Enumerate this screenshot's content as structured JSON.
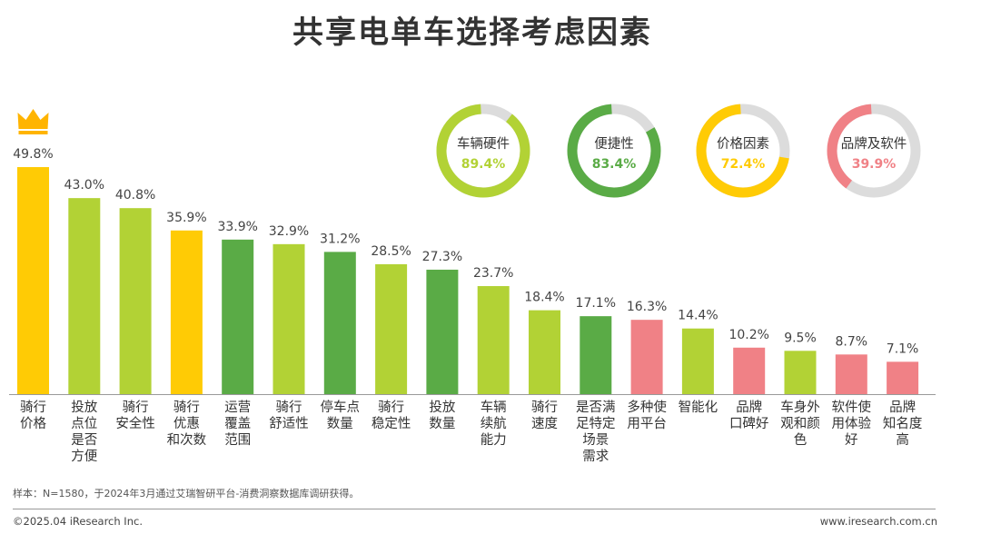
{
  "title": "共享电单车选择考虑因素",
  "chart_data": [
    {
      "type": "bar",
      "categories": [
        "骑行价格",
        "投放点位是否方便",
        "骑行安全性",
        "骑行优惠和次数",
        "运营覆盖范围",
        "骑行舒适性",
        "停车点数量",
        "骑行稳定性",
        "投放数量",
        "车辆续航能力",
        "骑行速度",
        "是否满足特定场景需求",
        "多种使用平台",
        "智能化",
        "品牌口碑好",
        "车身外观和颜色",
        "软件使用体验好",
        "品牌知名度高"
      ],
      "category_lines": [
        [
          "骑行",
          "价格"
        ],
        [
          "投放",
          "点位",
          "是否",
          "方便"
        ],
        [
          "骑行",
          "安全性"
        ],
        [
          "骑行",
          "优惠",
          "和次数"
        ],
        [
          "运营",
          "覆盖",
          "范围"
        ],
        [
          "骑行",
          "舒适性"
        ],
        [
          "停车点",
          "数量"
        ],
        [
          "骑行",
          "稳定性"
        ],
        [
          "投放",
          "数量"
        ],
        [
          "车辆",
          "续航",
          "能力"
        ],
        [
          "骑行",
          "速度"
        ],
        [
          "是否满",
          "足特定",
          "场景",
          "需求"
        ],
        [
          "多种使",
          "用平台"
        ],
        [
          "智能化"
        ],
        [
          "品牌",
          "口碑好"
        ],
        [
          "车身外",
          "观和颜",
          "色"
        ],
        [
          "软件使",
          "用体验",
          "好"
        ],
        [
          "品牌",
          "知名度",
          "高"
        ]
      ],
      "values": [
        49.8,
        43.0,
        40.8,
        35.9,
        33.9,
        32.9,
        31.2,
        28.5,
        27.3,
        23.7,
        18.4,
        17.1,
        16.3,
        14.4,
        10.2,
        9.5,
        8.7,
        7.1
      ],
      "labels": [
        "49.8%",
        "43.0%",
        "40.8%",
        "35.9%",
        "33.9%",
        "32.9%",
        "31.2%",
        "28.5%",
        "27.3%",
        "23.7%",
        "18.4%",
        "17.1%",
        "16.3%",
        "14.4%",
        "10.2%",
        "9.5%",
        "8.7%",
        "7.1%"
      ],
      "groups": [
        "price",
        "hardware",
        "hardware",
        "price",
        "convenience",
        "hardware",
        "convenience",
        "hardware",
        "convenience",
        "hardware",
        "hardware",
        "convenience",
        "brand",
        "hardware",
        "brand",
        "hardware",
        "brand",
        "brand"
      ],
      "top_marker": "crown-icon",
      "unit": "%"
    },
    {
      "type": "pie",
      "variant": "donut",
      "items": [
        {
          "name": "车辆硬件",
          "value": 89.4,
          "label": "89.4%",
          "group": "hardware"
        },
        {
          "name": "便捷性",
          "value": 83.4,
          "label": "83.4%",
          "group": "convenience"
        },
        {
          "name": "价格因素",
          "value": 72.4,
          "label": "72.4%",
          "group": "price"
        },
        {
          "name": "品牌及软件",
          "value": 39.9,
          "label": "39.9%",
          "group": "brand"
        }
      ]
    }
  ],
  "colors": {
    "hardware": "#b2d235",
    "convenience": "#5aab46",
    "price": "#ffcb05",
    "brand": "#f08186",
    "donut_track": "#dcdcdc",
    "baseline": "#9a9a9a",
    "crown": "#ffb400"
  },
  "footer": {
    "note": "样本：N=1580，于2024年3月通过艾瑞智研平台-消费洞察数据库调研获得。",
    "copyright": "©2025.04 iResearch Inc.",
    "website": "www.iresearch.com.cn"
  }
}
